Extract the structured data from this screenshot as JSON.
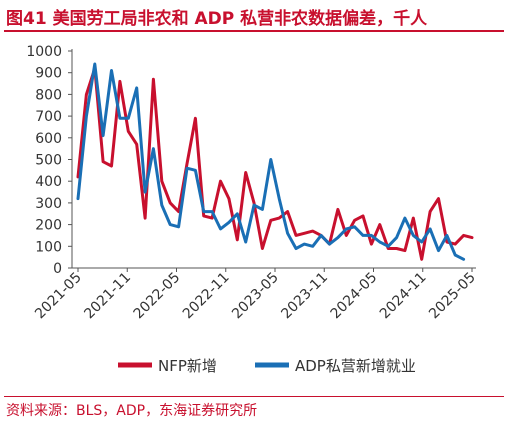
{
  "header": {
    "title": "图41  美国劳工局非农和 ADP 私营非农数据偏差，千人"
  },
  "footer": {
    "source": "资料来源：BLS，ADP，东海证券研究所"
  },
  "chart_data": {
    "type": "line",
    "ylim": [
      0,
      1000
    ],
    "yticks": [
      0,
      100,
      200,
      300,
      400,
      500,
      600,
      700,
      800,
      900,
      1000
    ],
    "xtick_labels": [
      "2021-05",
      "2021-11",
      "2022-05",
      "2022-11",
      "2023-05",
      "2023-11",
      "2024-05",
      "2024-11",
      "2025-05"
    ],
    "legend_position": "bottom",
    "grid": false,
    "series": [
      {
        "name": "NFP新增",
        "color": "#c8102e",
        "values": [
          420,
          800,
          920,
          490,
          470,
          860,
          630,
          570,
          230,
          870,
          400,
          300,
          260,
          480,
          690,
          240,
          230,
          400,
          320,
          130,
          440,
          300,
          90,
          220,
          230,
          260,
          150,
          160,
          170,
          150,
          110,
          270,
          150,
          220,
          240,
          110,
          200,
          90,
          90,
          80,
          230,
          40,
          260,
          320,
          120,
          110,
          150,
          140
        ]
      },
      {
        "name": "ADP私营新增就业",
        "color": "#1a6fb5",
        "values": [
          320,
          700,
          940,
          610,
          910,
          690,
          690,
          830,
          350,
          550,
          290,
          200,
          190,
          460,
          450,
          260,
          260,
          180,
          210,
          250,
          120,
          290,
          270,
          500,
          320,
          160,
          90,
          110,
          100,
          150,
          110,
          140,
          180,
          190,
          150,
          150,
          120,
          100,
          140,
          230,
          150,
          120,
          180,
          80,
          150,
          60,
          40
        ]
      }
    ]
  }
}
